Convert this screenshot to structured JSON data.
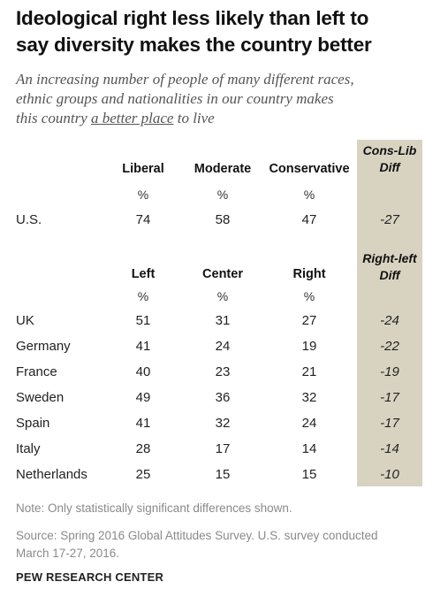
{
  "header": {
    "title_line1": "Ideological right less likely than left to",
    "title_line2": "say diversity makes the country better",
    "subtitle_line1": "An increasing number of people of many different races,",
    "subtitle_line2": "ethnic groups and nationalities in our country makes",
    "subtitle_line3_pre": "this country ",
    "subtitle_line3_ul": "a better place",
    "subtitle_line3_post": " to live"
  },
  "chart_data": {
    "type": "table",
    "us_section": {
      "columns": [
        "Liberal",
        "Moderate",
        "Conservative"
      ],
      "unit": "%",
      "diff_header_line1": "Cons-Lib",
      "diff_header_line2": "Diff",
      "rows": [
        {
          "country": "U.S.",
          "values": [
            "74",
            "58",
            "47"
          ],
          "diff": "-27"
        }
      ]
    },
    "europe_section": {
      "columns": [
        "Left",
        "Center",
        "Right"
      ],
      "unit": "%",
      "diff_header_line1": "Right-left",
      "diff_header_line2": "Diff",
      "rows": [
        {
          "country": "UK",
          "values": [
            "51",
            "31",
            "27"
          ],
          "diff": "-24"
        },
        {
          "country": "Germany",
          "values": [
            "41",
            "24",
            "19"
          ],
          "diff": "-22"
        },
        {
          "country": "France",
          "values": [
            "40",
            "23",
            "21"
          ],
          "diff": "-19"
        },
        {
          "country": "Sweden",
          "values": [
            "49",
            "36",
            "32"
          ],
          "diff": "-17"
        },
        {
          "country": "Spain",
          "values": [
            "41",
            "32",
            "24"
          ],
          "diff": "-17"
        },
        {
          "country": "Italy",
          "values": [
            "28",
            "17",
            "14"
          ],
          "diff": "-14"
        },
        {
          "country": "Netherlands",
          "values": [
            "25",
            "15",
            "15"
          ],
          "diff": "-10"
        }
      ]
    },
    "colors": {
      "diff_band": "#d8d3c1"
    }
  },
  "footer": {
    "note": "Note: Only statistically significant differences shown.",
    "source_line1": "Source: Spring 2016 Global Attitudes Survey. U.S. survey conducted",
    "source_line2": "March 17-27, 2016.",
    "brand": "PEW RESEARCH CENTER"
  }
}
